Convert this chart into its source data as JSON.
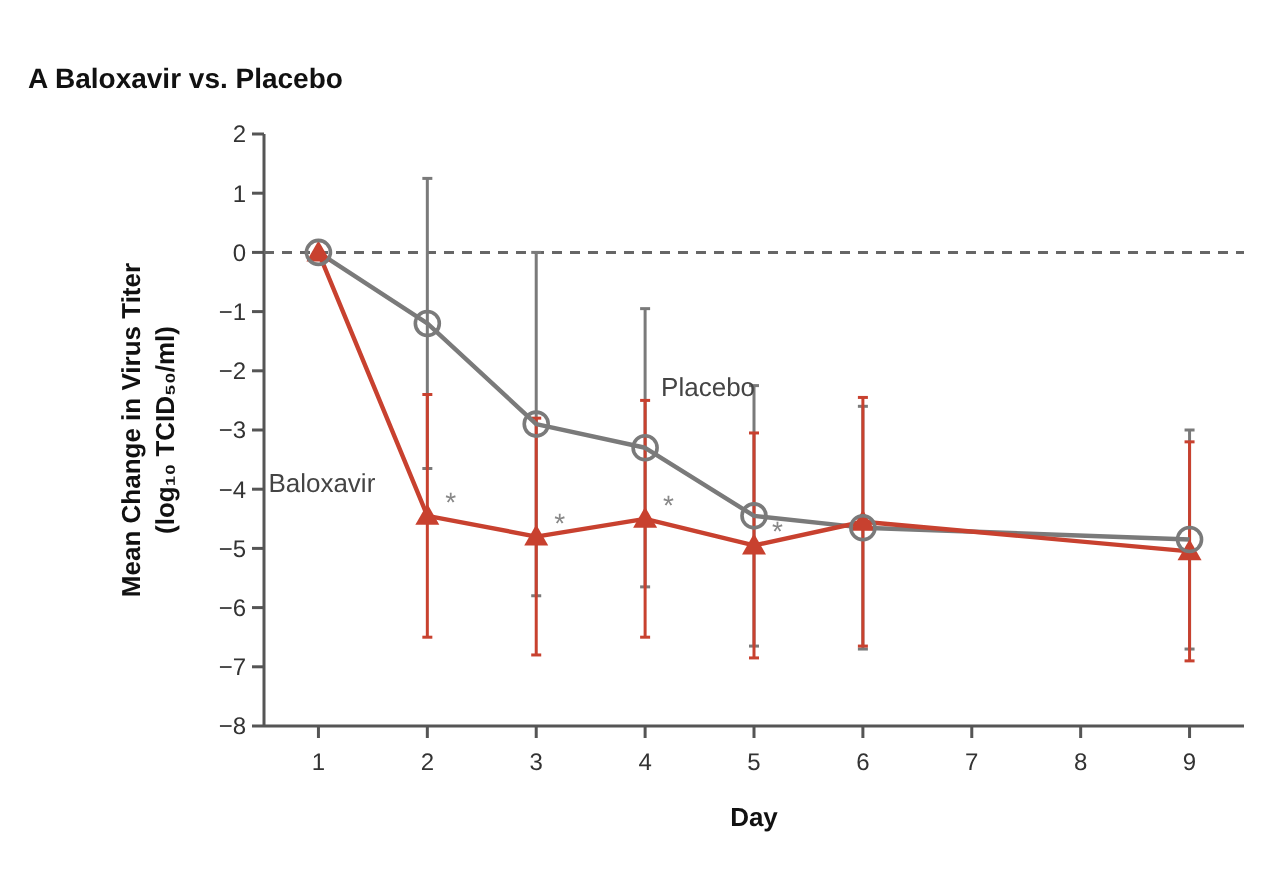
{
  "chart_data": {
    "type": "line",
    "title": "A  Baloxavir vs. Placebo",
    "xlabel": "Day",
    "ylabel": "Mean Change in Virus Titer\n(log₁₀ TCID₅₀/ml)",
    "x": [
      1,
      2,
      3,
      4,
      5,
      6,
      9
    ],
    "series": [
      {
        "name": "Placebo",
        "color": "#7a7a7a",
        "marker": "circle",
        "values": [
          0,
          -1.2,
          -2.9,
          -3.3,
          -4.45,
          -4.65,
          -4.85
        ],
        "errors": [
          null,
          2.45,
          2.9,
          2.35,
          2.2,
          2.05,
          1.85
        ]
      },
      {
        "name": "Baloxavir",
        "color": "#c8412f",
        "marker": "triangle",
        "values": [
          0,
          -4.45,
          -4.8,
          -4.5,
          -4.95,
          -4.55,
          -5.05
        ],
        "errors": [
          null,
          2.05,
          2.0,
          2.0,
          1.9,
          2.1,
          1.85
        ]
      }
    ],
    "xlim": [
      0.5,
      9.5
    ],
    "xticks": [
      1,
      2,
      3,
      4,
      5,
      6,
      7,
      8,
      9
    ],
    "ylim": [
      -8,
      2
    ],
    "yticks": [
      2,
      1,
      0,
      -1,
      -2,
      -3,
      -4,
      -5,
      -6,
      -7,
      -8
    ],
    "ref_lines": [
      {
        "axis": "y",
        "value": 0,
        "line_style": "dashed"
      }
    ],
    "annotations": [
      {
        "text": "*",
        "x": 2,
        "y": -4.45
      },
      {
        "text": "*",
        "x": 3,
        "y": -4.8
      },
      {
        "text": "*",
        "x": 4,
        "y": -4.5
      },
      {
        "text": "*",
        "x": 5,
        "y": -4.95
      }
    ],
    "grid": false,
    "legend": false,
    "line_style": "solid"
  }
}
